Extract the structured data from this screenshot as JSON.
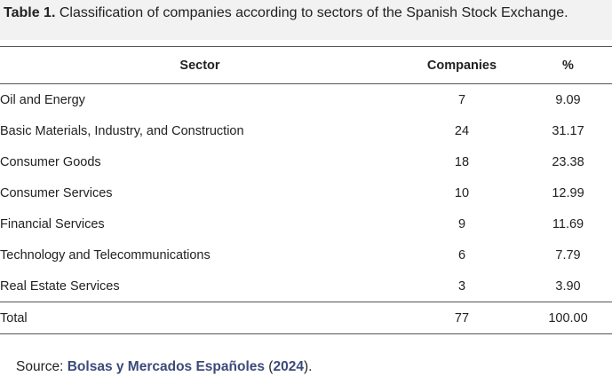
{
  "caption": {
    "label": "Table 1.",
    "text": "Classification of companies according to sectors of the Spanish Stock Exchange."
  },
  "table": {
    "headers": [
      "Sector",
      "Companies",
      "%"
    ],
    "rows": [
      {
        "sector": "Oil and Energy",
        "companies": "7",
        "percent": "9.09"
      },
      {
        "sector": "Basic Materials, Industry, and Construction",
        "companies": "24",
        "percent": "31.17"
      },
      {
        "sector": "Consumer Goods",
        "companies": "18",
        "percent": "23.38"
      },
      {
        "sector": "Consumer Services",
        "companies": "10",
        "percent": "12.99"
      },
      {
        "sector": "Financial Services",
        "companies": "9",
        "percent": "11.69"
      },
      {
        "sector": "Technology and Telecommunications",
        "companies": "6",
        "percent": "7.79"
      },
      {
        "sector": "Real Estate Services",
        "companies": "3",
        "percent": "3.90"
      }
    ],
    "total": {
      "sector": "Total",
      "companies": "77",
      "percent": "100.00"
    }
  },
  "source": {
    "prefix": "Source: ",
    "ref_text": "Bolsas y Mercados Españoles",
    "year_open": " (",
    "year": "2024",
    "year_close": ")."
  }
}
